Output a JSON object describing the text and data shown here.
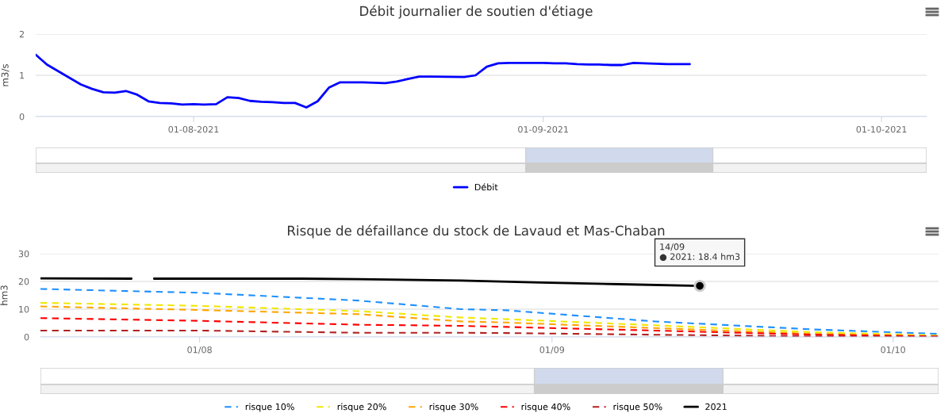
{
  "chart_data": [
    {
      "type": "line",
      "title": "Débit journalier de soutien d'étiage",
      "ylabel": "m3/s",
      "x": [
        "2021-07-18",
        "2021-07-19",
        "2021-07-22",
        "2021-07-23",
        "2021-07-24",
        "2021-07-25",
        "2021-07-26",
        "2021-07-27",
        "2021-07-28",
        "2021-07-29",
        "2021-07-30",
        "2021-07-31",
        "2021-08-01",
        "2021-08-02",
        "2021-08-03",
        "2021-08-04",
        "2021-08-05",
        "2021-08-06",
        "2021-08-07",
        "2021-08-08",
        "2021-08-09",
        "2021-08-10",
        "2021-08-11",
        "2021-08-12",
        "2021-08-13",
        "2021-08-14",
        "2021-08-16",
        "2021-08-18",
        "2021-08-19",
        "2021-08-20",
        "2021-08-21",
        "2021-08-22",
        "2021-08-25",
        "2021-08-26",
        "2021-08-27",
        "2021-08-28",
        "2021-08-29",
        "2021-09-01",
        "2021-09-02",
        "2021-09-03",
        "2021-09-04",
        "2021-09-05",
        "2021-09-06",
        "2021-09-07",
        "2021-09-08",
        "2021-09-09",
        "2021-09-10",
        "2021-09-11",
        "2021-09-12",
        "2021-09-13",
        "2021-09-14"
      ],
      "series": [
        {
          "name": "Débit",
          "color": "#0000ff",
          "line_style": "solid",
          "values": [
            1.5,
            1.26,
            0.78,
            0.67,
            0.59,
            0.58,
            0.62,
            0.53,
            0.37,
            0.33,
            0.32,
            0.29,
            0.3,
            0.29,
            0.3,
            0.47,
            0.45,
            0.38,
            0.36,
            0.35,
            0.33,
            0.33,
            0.22,
            0.37,
            0.7,
            0.83,
            0.83,
            0.81,
            0.85,
            0.91,
            0.97,
            0.97,
            0.96,
            1.0,
            1.21,
            1.29,
            1.3,
            1.3,
            1.29,
            1.29,
            1.27,
            1.26,
            1.26,
            1.25,
            1.25,
            1.3,
            1.29,
            1.28,
            1.27,
            1.27,
            1.27
          ]
        }
      ],
      "xlim": [
        "2021-07-18",
        "2021-10-05"
      ],
      "xticks": [
        {
          "value": "2021-08-01",
          "label": "01-08-2021"
        },
        {
          "value": "2021-09-01",
          "label": "01-09-2021"
        },
        {
          "value": "2021-10-01",
          "label": "01-10-2021"
        }
      ],
      "ylim": [
        0,
        2
      ],
      "yticks": [
        0,
        1,
        2
      ],
      "grid": "y",
      "legend": "bottom",
      "marker": "none"
    },
    {
      "type": "line",
      "title": "Risque de défaillance du stock de Lavaud et Mas-Chaban",
      "ylabel": "hm3",
      "x": [
        "2021-07-18",
        "2021-08-01",
        "2021-08-15",
        "2021-08-24",
        "2021-08-28",
        "2021-09-10",
        "2021-09-24",
        "2021-10-05"
      ],
      "series": [
        {
          "name": "risque 10%",
          "color": "#1e90ff",
          "line_style": "dashed",
          "values": [
            17.3,
            15.9,
            13.1,
            10.0,
            9.6,
            5.6,
            2.7,
            1.1
          ]
        },
        {
          "name": "risque 20%",
          "color": "#f0e800",
          "line_style": "dashed",
          "values": [
            12.3,
            11.2,
            9.3,
            7.0,
            6.4,
            4.2,
            1.7,
            0.5
          ]
        },
        {
          "name": "risque 30%",
          "color": "#ffa500",
          "line_style": "dashed",
          "values": [
            11.0,
            9.7,
            8.2,
            5.6,
            5.2,
            3.2,
            1.1,
            0.2
          ]
        },
        {
          "name": "risque 40%",
          "color": "#ff0000",
          "line_style": "dashed",
          "values": [
            6.8,
            5.8,
            4.4,
            4.0,
            3.6,
            2.3,
            0.8,
            0.2
          ]
        },
        {
          "name": "risque 50%",
          "color": "#b22222",
          "line_style": "dashed",
          "values": [
            2.3,
            2.3,
            1.5,
            1.5,
            1.4,
            0.8,
            0.2,
            0.1
          ]
        },
        {
          "name": "2021",
          "color": "#000000",
          "line_style": "solid",
          "x": [
            "2021-07-18",
            "2021-07-26",
            "2021-07-27",
            "2021-07-28",
            "2021-08-10",
            "2021-08-15",
            "2021-08-24",
            "2021-08-31",
            "2021-09-07",
            "2021-09-14"
          ],
          "values": [
            21.1,
            21.0,
            null,
            21.0,
            21.0,
            20.8,
            20.3,
            19.6,
            19.0,
            18.4
          ]
        }
      ],
      "annotations": [
        {
          "text": "14/09\n● 2021: 18.4 hm3",
          "x": "2021-09-14",
          "y": 18.4
        }
      ],
      "xlim": [
        "2021-07-18",
        "2021-10-05"
      ],
      "xticks": [
        {
          "value": "2021-08-01",
          "label": "01/08"
        },
        {
          "value": "2021-09-01",
          "label": "01/09"
        },
        {
          "value": "2021-10-01",
          "label": "01/10"
        }
      ],
      "ylim": [
        0,
        30
      ],
      "yticks": [
        0,
        10,
        20,
        30
      ],
      "grid": "y",
      "legend": "bottom",
      "marker": "none"
    }
  ]
}
